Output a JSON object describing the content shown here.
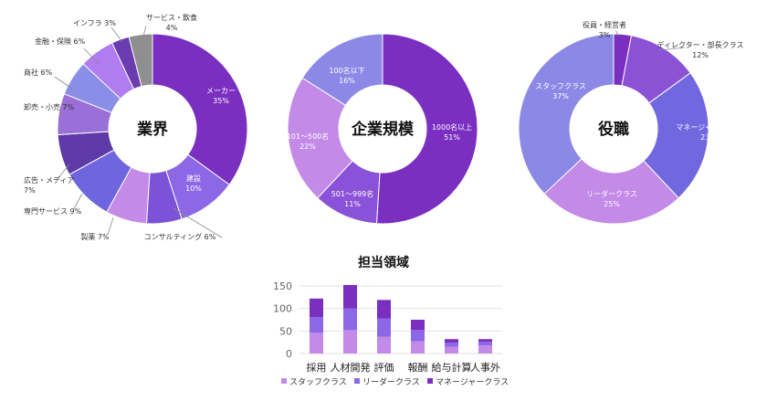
{
  "colors": {
    "staff": "#c48ae8",
    "leader": "#8c68e6",
    "manager": "#7a2fc0"
  },
  "chart_data": [
    {
      "type": "pie",
      "subtype": "donut",
      "center_label": "業界",
      "slices": [
        {
          "label": "メーカー",
          "pct": "35%",
          "value": 35,
          "color": "#7a2fc0"
        },
        {
          "label": "建設",
          "pct": "10%",
          "value": 10,
          "color": "#8c68e6"
        },
        {
          "label": "コンサルティング",
          "pct": "6%",
          "value": 6,
          "color": "#7b52d8"
        },
        {
          "label": "製薬",
          "pct": "7%",
          "value": 7,
          "color": "#c48ae8"
        },
        {
          "label": "専門サービス",
          "pct": "9%",
          "value": 9,
          "color": "#6f66df"
        },
        {
          "label": "広告・メディア",
          "pct": "7%",
          "value": 7,
          "color": "#5e3aa8"
        },
        {
          "label": "卸売・小売",
          "pct": "7%",
          "value": 7,
          "color": "#9a6fd8"
        },
        {
          "label": "商社",
          "pct": "6%",
          "value": 6,
          "color": "#8a8ee6"
        },
        {
          "label": "金融・保険",
          "pct": "6%",
          "value": 6,
          "color": "#b07cf0"
        },
        {
          "label": "インフラ",
          "pct": "3%",
          "value": 3,
          "color": "#6a3cb0"
        },
        {
          "label": "サービス・飲食",
          "pct": "4%",
          "value": 4,
          "color": "#8f8f8f"
        }
      ]
    },
    {
      "type": "pie",
      "subtype": "donut",
      "center_label": "企業規模",
      "slices": [
        {
          "label": "1000名以上",
          "pct": "51%",
          "value": 51,
          "color": "#7a2fc0"
        },
        {
          "label": "501～999名",
          "pct": "11%",
          "value": 11,
          "color": "#8a52d8"
        },
        {
          "label": "101～500名",
          "pct": "22%",
          "value": 22,
          "color": "#c48ae8"
        },
        {
          "label": "100名以下",
          "pct": "16%",
          "value": 16,
          "color": "#8c88e6"
        }
      ]
    },
    {
      "type": "pie",
      "subtype": "donut",
      "center_label": "役職",
      "slices": [
        {
          "label": "役員・経営者",
          "pct": "3%",
          "value": 3,
          "color": "#7a2fc0"
        },
        {
          "label": "ディレクター・部長クラス",
          "pct": "12%",
          "value": 12,
          "color": "#8b52d6"
        },
        {
          "label": "マネージャークラス",
          "pct": "23%",
          "value": 23,
          "color": "#7168e0"
        },
        {
          "label": "リーダークラス",
          "pct": "25%",
          "value": 25,
          "color": "#c48ae8"
        },
        {
          "label": "スタッフクラス",
          "pct": "37%",
          "value": 37,
          "color": "#8c88e6"
        }
      ]
    },
    {
      "type": "bar",
      "stacked": true,
      "title": "担当領域",
      "categories": [
        "採用",
        "人材開発",
        "評価",
        "報酬",
        "給与計算",
        "人事外"
      ],
      "ylim": [
        0,
        150
      ],
      "yticks": [
        0,
        50,
        100,
        150
      ],
      "grid": true,
      "legend_position": "bottom",
      "series": [
        {
          "name": "スタッフクラス",
          "values": [
            46,
            52,
            37,
            27,
            15,
            18
          ],
          "color": "#c48ae8"
        },
        {
          "name": "リーダークラス",
          "values": [
            35,
            48,
            41,
            25,
            9,
            8
          ],
          "color": "#8c68e6"
        },
        {
          "name": "マネージャークラス",
          "values": [
            41,
            52,
            41,
            23,
            8,
            6
          ],
          "color": "#7a2fc0"
        }
      ]
    }
  ]
}
